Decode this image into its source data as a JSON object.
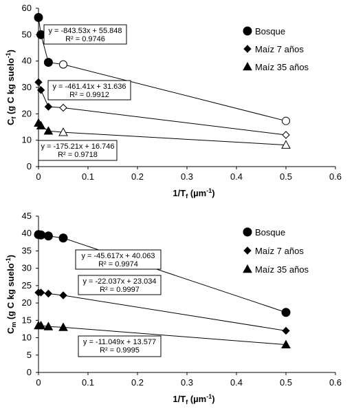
{
  "chart_data": [
    {
      "type": "scatter",
      "xlabel": "1/T",
      "xlabel_sub": "f",
      "xlabel_unit": " (µm",
      "xlabel_unit_sup": "-1",
      "xlabel_close": ")",
      "ylabel": "C",
      "ylabel_sub": "f",
      "ylabel_unit": " (g C kg suelo",
      "ylabel_unit_sup": "-1",
      "ylabel_close": ")",
      "xlim": [
        0,
        0.6
      ],
      "ylim": [
        0,
        60
      ],
      "xticks": [
        "0",
        "0.1",
        "0.2",
        "0.3",
        "0.4",
        "0.5",
        "0.6"
      ],
      "yticks": [
        "0",
        "10",
        "20",
        "30",
        "40",
        "50",
        "60"
      ],
      "legend_position": "right",
      "series": [
        {
          "name": "Bosque",
          "marker": "circle",
          "filled_x": [
            0,
            0.005,
            0.02
          ],
          "filled_y": [
            56.5,
            50,
            39.5
          ],
          "open_x": [
            0.05,
            0.5
          ],
          "open_y": [
            38.7,
            17.3
          ],
          "equation": "y = -843.53x + 55.848",
          "r2": "R² = 0.9746"
        },
        {
          "name": "Maíz 7 años",
          "marker": "diamond",
          "filled_x": [
            0,
            0.005,
            0.02
          ],
          "filled_y": [
            32,
            29,
            22.7
          ],
          "open_x": [
            0.05,
            0.5
          ],
          "open_y": [
            22.3,
            12
          ],
          "equation": "y = -461.41x + 31.636",
          "r2": "R² = 0.9912"
        },
        {
          "name": "Maíz 35 años",
          "marker": "triangle",
          "filled_x": [
            0,
            0.005,
            0.02
          ],
          "filled_y": [
            16.5,
            15.5,
            13.5
          ],
          "open_x": [
            0.05,
            0.5
          ],
          "open_y": [
            13,
            8.2
          ],
          "equation": "y = -175.21x + 16.746",
          "r2": "R² = 0.9718"
        }
      ]
    },
    {
      "type": "scatter",
      "xlabel": "1/T",
      "xlabel_sub": "f",
      "xlabel_unit": " (µm",
      "xlabel_unit_sup": "-1",
      "xlabel_close": ")",
      "ylabel": "C",
      "ylabel_sub": "m",
      "ylabel_unit": " (g C kg suelo",
      "ylabel_unit_sup": "-1",
      "ylabel_close": ")",
      "xlim": [
        0,
        0.6
      ],
      "ylim": [
        0,
        45
      ],
      "xticks": [
        "0",
        "0.1",
        "0.2",
        "0.3",
        "0.4",
        "0.5",
        "0.6"
      ],
      "yticks": [
        "0",
        "5",
        "10",
        "15",
        "20",
        "25",
        "30",
        "35",
        "40",
        "45"
      ],
      "legend_position": "right",
      "series": [
        {
          "name": "Bosque",
          "marker": "circle",
          "filled_x": [
            0,
            0.005,
            0.02,
            0.05,
            0.5
          ],
          "filled_y": [
            39.7,
            39.6,
            39.3,
            38.7,
            17.3
          ],
          "open_x": [],
          "open_y": [],
          "equation": "y = -45.617x + 40.063",
          "r2": "R² = 0.9974"
        },
        {
          "name": "Maíz 7 años",
          "marker": "diamond",
          "filled_x": [
            0,
            0.005,
            0.02,
            0.05,
            0.5
          ],
          "filled_y": [
            23,
            23,
            22.7,
            22.2,
            12
          ],
          "open_x": [],
          "open_y": [],
          "equation": "y = -22.037x + 23.034",
          "r2": "R² = 0.9997"
        },
        {
          "name": "Maíz 35 años",
          "marker": "triangle",
          "filled_x": [
            0,
            0.005,
            0.02,
            0.05,
            0.5
          ],
          "filled_y": [
            13.5,
            13.5,
            13.2,
            13,
            8
          ],
          "open_x": [],
          "open_y": [],
          "equation": "y = -11.049x + 13.577",
          "r2": "R² = 0.9995"
        }
      ]
    }
  ]
}
